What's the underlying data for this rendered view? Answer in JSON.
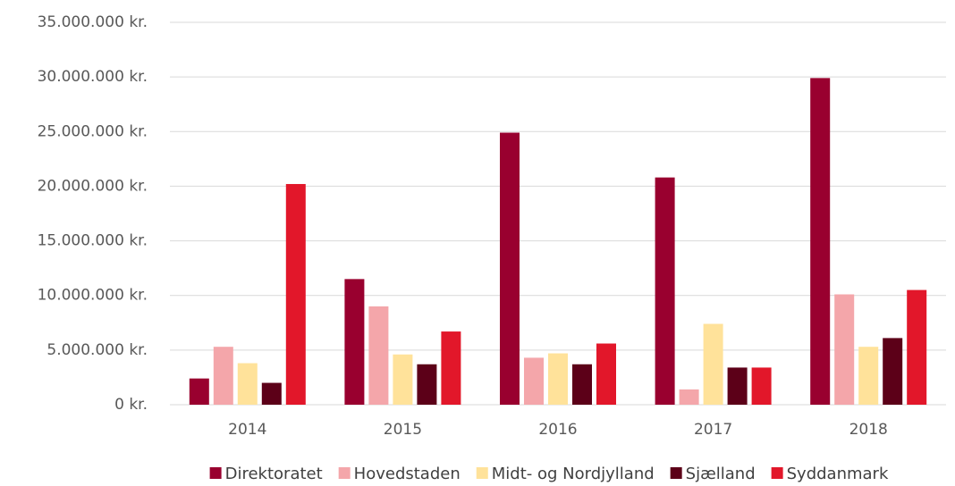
{
  "chart_data": {
    "type": "bar",
    "categories": [
      "2014",
      "2015",
      "2016",
      "2017",
      "2018"
    ],
    "series": [
      {
        "name": "Direktoratet",
        "color": "#99002f",
        "values": [
          2400000,
          11500000,
          24900000,
          20800000,
          29900000
        ]
      },
      {
        "name": "Hovedstaden",
        "color": "#f4a6aa",
        "values": [
          5300000,
          9000000,
          4300000,
          1400000,
          10100000
        ]
      },
      {
        "name": "Midt- og Nordjylland",
        "color": "#ffe29a",
        "values": [
          3800000,
          4600000,
          4700000,
          7400000,
          5300000
        ]
      },
      {
        "name": "Sjælland",
        "color": "#5c0018",
        "values": [
          2000000,
          3700000,
          3700000,
          3400000,
          6100000
        ]
      },
      {
        "name": "Syddanmark",
        "color": "#e2172a",
        "values": [
          20200000,
          6700000,
          5600000,
          3400000,
          10500000
        ]
      }
    ],
    "ylim": [
      0,
      35000000
    ],
    "yticks": [
      {
        "value": 0,
        "label": "0 kr."
      },
      {
        "value": 5000000,
        "label": "5.000.000 kr."
      },
      {
        "value": 10000000,
        "label": "10.000.000 kr."
      },
      {
        "value": 15000000,
        "label": "15.000.000 kr."
      },
      {
        "value": 20000000,
        "label": "20.000.000 kr."
      },
      {
        "value": 25000000,
        "label": "25.000.000 kr."
      },
      {
        "value": 30000000,
        "label": "30.000.000 kr."
      },
      {
        "value": 35000000,
        "label": "35.000.000 kr."
      }
    ],
    "grid": true,
    "legend": "bottom"
  }
}
